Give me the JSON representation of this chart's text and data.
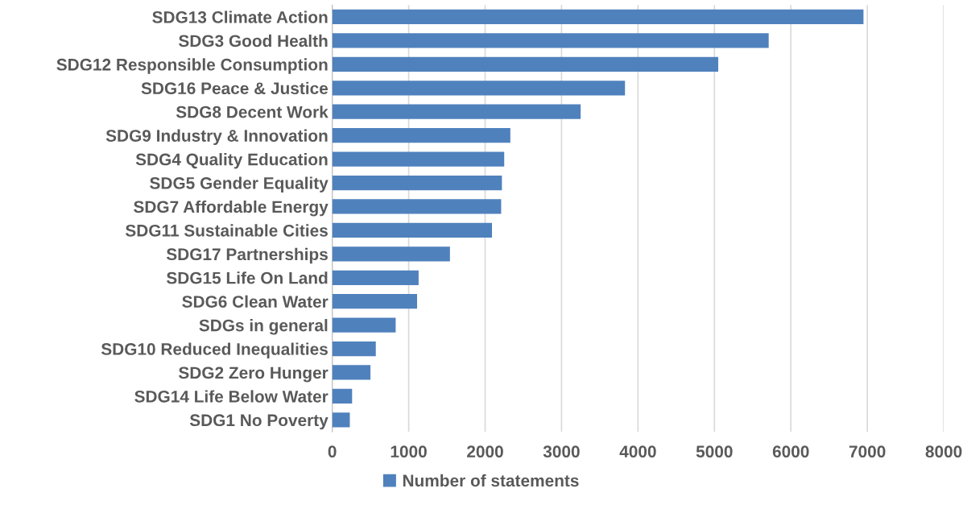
{
  "chart_data": {
    "type": "bar",
    "orientation": "horizontal",
    "categories": [
      "SDG13 Climate Action",
      "SDG3 Good Health",
      "SDG12 Responsible Consumption",
      "SDG16 Peace & Justice",
      "SDG8 Decent Work",
      "SDG9 Industry & Innovation",
      "SDG4 Quality Education",
      "SDG5 Gender Equality",
      "SDG7 Affordable Energy",
      "SDG11 Sustainable Cities",
      "SDG17 Partnerships",
      "SDG15 Life On Land",
      "SDG6 Clean Water",
      "SDGs in general",
      "SDG10 Reduced Inequalities",
      "SDG2 Zero Hunger",
      "SDG14 Life Below Water",
      "SDG1 No Poverty"
    ],
    "series": [
      {
        "name": "Number of statements",
        "color": "#4f81bd",
        "values": [
          6950,
          5710,
          5050,
          3830,
          3250,
          2330,
          2250,
          2220,
          2210,
          2090,
          1540,
          1130,
          1110,
          830,
          570,
          500,
          260,
          230
        ]
      }
    ],
    "xlim": [
      0,
      8000
    ],
    "xticks": [
      0,
      1000,
      2000,
      3000,
      4000,
      5000,
      6000,
      7000,
      8000
    ],
    "grid": "x",
    "legend": "bottom"
  }
}
